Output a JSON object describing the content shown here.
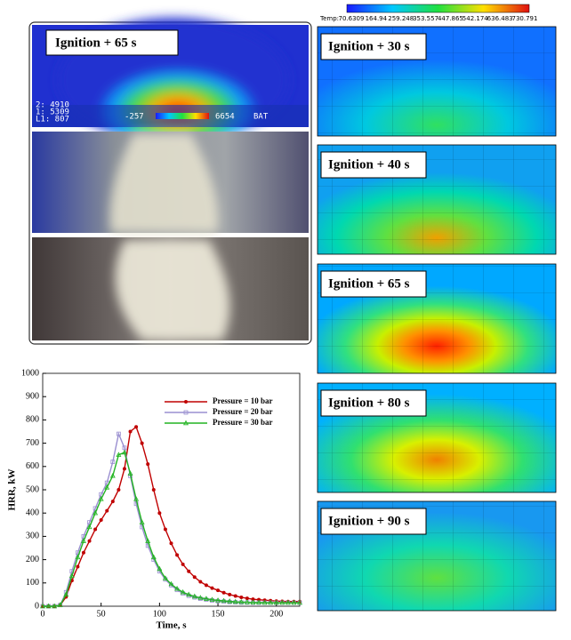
{
  "colorbar": {
    "label": "Temp:",
    "ticks": [
      70.6309,
      164.94,
      259.248,
      353.557,
      447.865,
      542.174,
      636.483,
      730.791
    ]
  },
  "photo_panel": {
    "label": "Ignition + 65 s",
    "overlay": [
      "2: 4910",
      "1: 5309",
      "L1: 807",
      "-257",
      "6654",
      "BAT"
    ]
  },
  "cfd_panels": [
    "Ignition + 30 s",
    "Ignition + 40 s",
    "Ignition + 65 s",
    "Ignition + 80 s",
    "Ignition + 90 s"
  ],
  "chart_data": {
    "type": "line",
    "xlabel": "Time, s",
    "ylabel": "HRR, kW",
    "x": [
      0,
      5,
      10,
      15,
      20,
      25,
      30,
      35,
      40,
      45,
      50,
      55,
      60,
      65,
      70,
      75,
      80,
      85,
      90,
      95,
      100,
      105,
      110,
      115,
      120,
      125,
      130,
      135,
      140,
      145,
      150,
      155,
      160,
      165,
      170,
      175,
      180,
      185,
      190,
      195,
      200,
      205,
      210,
      215,
      220
    ],
    "series": [
      {
        "name": "Pressure = 10 bar",
        "color": "#c00000",
        "marker": "circle",
        "values": [
          0,
          0,
          0,
          5,
          40,
          110,
          170,
          230,
          280,
          330,
          370,
          410,
          450,
          500,
          590,
          750,
          770,
          700,
          610,
          500,
          400,
          330,
          270,
          220,
          180,
          150,
          125,
          105,
          90,
          78,
          68,
          58,
          50,
          44,
          38,
          34,
          30,
          28,
          26,
          24,
          22,
          21,
          20,
          20,
          20
        ]
      },
      {
        "name": "Pressure = 20 bar",
        "color": "#9a8fd0",
        "marker": "square",
        "values": [
          0,
          0,
          0,
          5,
          60,
          150,
          230,
          300,
          360,
          420,
          480,
          530,
          620,
          740,
          680,
          560,
          440,
          340,
          260,
          200,
          150,
          115,
          90,
          70,
          55,
          45,
          38,
          32,
          28,
          25,
          22,
          20,
          18,
          17,
          16,
          16,
          15,
          15,
          15,
          15,
          15,
          15,
          15,
          15,
          15
        ]
      },
      {
        "name": "Pressure = 30 bar",
        "color": "#22b422",
        "marker": "triangle",
        "values": [
          0,
          0,
          0,
          5,
          50,
          130,
          210,
          280,
          340,
          400,
          460,
          510,
          560,
          650,
          660,
          570,
          460,
          360,
          280,
          210,
          160,
          120,
          95,
          75,
          60,
          50,
          42,
          36,
          32,
          28,
          25,
          23,
          21,
          19,
          18,
          17,
          16,
          16,
          15,
          15,
          15,
          15,
          15,
          15,
          15
        ]
      }
    ],
    "xlim": [
      0,
      220
    ],
    "xticks": [
      0,
      50,
      100,
      150,
      200
    ],
    "ylim": [
      0,
      1000
    ],
    "yticks": [
      0,
      100,
      200,
      300,
      400,
      500,
      600,
      700,
      800,
      900,
      1000
    ],
    "legend": "upper right"
  }
}
